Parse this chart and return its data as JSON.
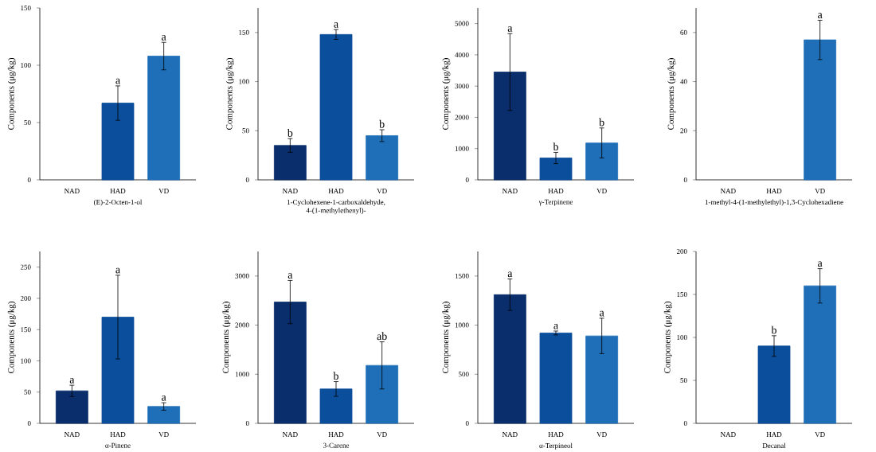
{
  "chart_data": [
    {
      "type": "bar",
      "xlabel": "(E)-2-Octen-1-ol",
      "ylabel": "Components (μg/kg)",
      "categories": [
        "NAD",
        "HAD",
        "VD"
      ],
      "values": [
        null,
        67,
        108
      ],
      "errors": [
        null,
        15,
        12
      ],
      "colors": [
        "#0a2d6b",
        "#0b4f9c",
        "#1f6fb8"
      ],
      "ylim": [
        0,
        150
      ],
      "yticks": [
        0,
        50,
        100,
        150
      ],
      "annotations": [
        {
          "text": "a",
          "x": "HAD",
          "y": 82
        },
        {
          "text": "a",
          "x": "VD",
          "y": 120
        }
      ]
    },
    {
      "type": "bar",
      "xlabel": "1-Cyclohexene-1-carboxaldehyde, 4-(1-methylethenyl)-",
      "ylabel": "Components (μg/kg)",
      "categories": [
        "NAD",
        "HAD",
        "VD"
      ],
      "values": [
        35,
        148,
        45
      ],
      "errors": [
        7,
        5,
        6
      ],
      "colors": [
        "#0a2d6b",
        "#0b4f9c",
        "#1f6fb8"
      ],
      "ylim": [
        0,
        175
      ],
      "yticks": [
        0,
        50,
        100,
        150
      ],
      "annotations": [
        {
          "text": "b",
          "x": "NAD",
          "y": 42
        },
        {
          "text": "a",
          "x": "HAD",
          "y": 153
        },
        {
          "text": "b",
          "x": "VD",
          "y": 51
        }
      ]
    },
    {
      "type": "bar",
      "xlabel": "γ-Terpinene",
      "ylabel": "Components (μg/kg)",
      "categories": [
        "NAD",
        "HAD",
        "VD"
      ],
      "values": [
        3450,
        700,
        1180
      ],
      "errors": [
        1230,
        180,
        480
      ],
      "colors": [
        "#0a2d6b",
        "#0b4f9c",
        "#1f6fb8"
      ],
      "ylim": [
        0,
        5500
      ],
      "yticks": [
        0,
        1000,
        2000,
        3000,
        4000,
        5000
      ],
      "annotations": [
        {
          "text": "a",
          "x": "NAD",
          "y": 4680
        },
        {
          "text": "b",
          "x": "HAD",
          "y": 880
        },
        {
          "text": "b",
          "x": "VD",
          "y": 1660
        }
      ]
    },
    {
      "type": "bar",
      "xlabel": "1-methyl-4-(1-methylethyl)-1,3-Cyclohexadiene",
      "ylabel": "Components (μg/kg)",
      "categories": [
        "NAD",
        "HAD",
        "VD"
      ],
      "values": [
        null,
        null,
        57
      ],
      "errors": [
        null,
        null,
        8
      ],
      "colors": [
        "#0a2d6b",
        "#0b4f9c",
        "#1f6fb8"
      ],
      "ylim": [
        0,
        70
      ],
      "yticks": [
        0,
        20,
        40,
        60
      ],
      "annotations": [
        {
          "text": "a",
          "x": "VD",
          "y": 65
        }
      ]
    },
    {
      "type": "bar",
      "xlabel": "α-Pinene",
      "ylabel": "Components (μg/kg)",
      "categories": [
        "NAD",
        "HAD",
        "VD"
      ],
      "values": [
        52,
        170,
        27
      ],
      "errors": [
        9,
        67,
        6
      ],
      "colors": [
        "#0a2d6b",
        "#0b4f9c",
        "#1f6fb8"
      ],
      "ylim": [
        0,
        275
      ],
      "yticks": [
        0,
        50,
        100,
        150,
        200,
        250
      ],
      "annotations": [
        {
          "text": "a",
          "x": "NAD",
          "y": 61
        },
        {
          "text": "a",
          "x": "HAD",
          "y": 237
        },
        {
          "text": "a",
          "x": "VD",
          "y": 33
        }
      ]
    },
    {
      "type": "bar",
      "xlabel": "3-Carene",
      "ylabel": "Components (μg/kg)",
      "categories": [
        "NAD",
        "HAD",
        "VD"
      ],
      "values": [
        2470,
        700,
        1180
      ],
      "errors": [
        440,
        150,
        480
      ],
      "colors": [
        "#0a2d6b",
        "#0b4f9c",
        "#1f6fb8"
      ],
      "ylim": [
        0,
        3500
      ],
      "yticks": [
        0,
        1000,
        2000,
        3000
      ],
      "annotations": [
        {
          "text": "a",
          "x": "NAD",
          "y": 2910
        },
        {
          "text": "b",
          "x": "HAD",
          "y": 850
        },
        {
          "text": "ab",
          "x": "VD",
          "y": 1660
        }
      ]
    },
    {
      "type": "bar",
      "xlabel": "α-Terpineol",
      "ylabel": "Components (μg/kg)",
      "categories": [
        "NAD",
        "HAD",
        "VD"
      ],
      "values": [
        1310,
        920,
        890
      ],
      "errors": [
        160,
        20,
        180
      ],
      "colors": [
        "#0a2d6b",
        "#0b4f9c",
        "#1f6fb8"
      ],
      "ylim": [
        0,
        1750
      ],
      "yticks": [
        0,
        500,
        1000,
        1500
      ],
      "annotations": [
        {
          "text": "a",
          "x": "NAD",
          "y": 1470
        },
        {
          "text": "a",
          "x": "HAD",
          "y": 940
        },
        {
          "text": "a",
          "x": "VD",
          "y": 1070
        }
      ]
    },
    {
      "type": "bar",
      "xlabel": "Decanal",
      "ylabel": "Components (μg/kg)",
      "categories": [
        "NAD",
        "HAD",
        "VD"
      ],
      "values": [
        null,
        90,
        160
      ],
      "errors": [
        null,
        12,
        20
      ],
      "colors": [
        "#0a2d6b",
        "#0b4f9c",
        "#1f6fb8"
      ],
      "ylim": [
        0,
        200
      ],
      "yticks": [
        0,
        50,
        100,
        150,
        200
      ],
      "annotations": [
        {
          "text": "b",
          "x": "HAD",
          "y": 102
        },
        {
          "text": "a",
          "x": "VD",
          "y": 180
        }
      ]
    }
  ]
}
